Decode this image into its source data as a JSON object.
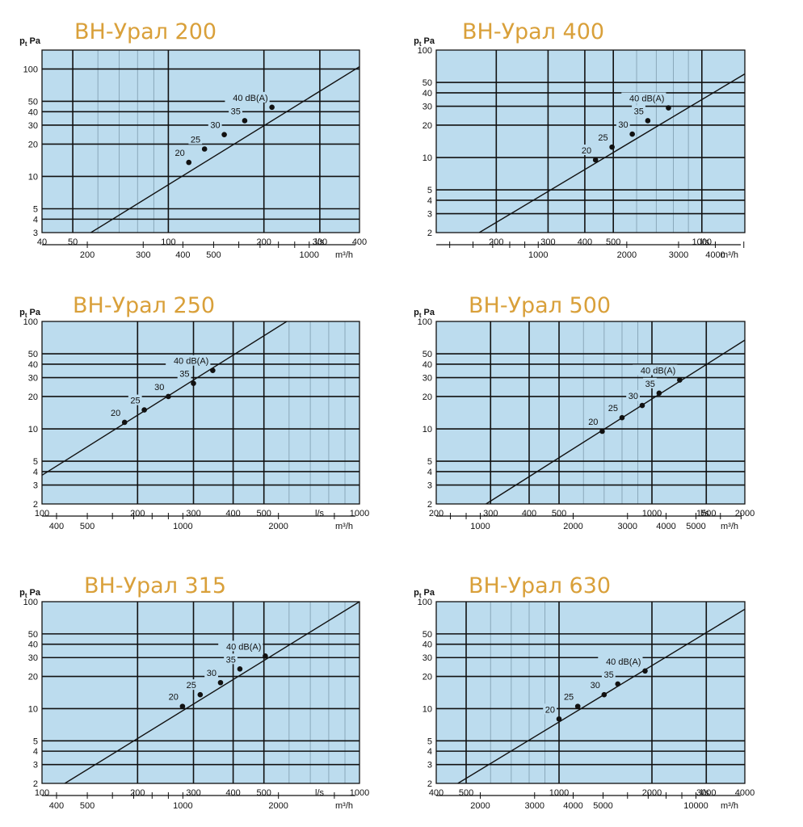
{
  "colors": {
    "plot_bg": "#bcdcee",
    "title": "#d9a03a",
    "axis": "#111111"
  },
  "labels": {
    "y_axis": "pt Pa",
    "x_flow_ls": "l/s",
    "x_flow_m3h": "m³/h"
  },
  "chart_data": [
    {
      "type": "line",
      "title": "ВН-Урал 200",
      "x_scale": "log",
      "y_scale": "log",
      "xlim": [
        40,
        400
      ],
      "ylim": [
        3,
        150
      ],
      "x_ticks": [
        40,
        50,
        100,
        200,
        300,
        400
      ],
      "y_ticks": [
        3,
        4,
        5,
        10,
        20,
        30,
        40,
        50,
        100
      ],
      "m3h_ticks": [
        200,
        300,
        400,
        500,
        1000
      ],
      "line": [
        [
          57,
          3
        ],
        [
          400,
          105
        ]
      ],
      "points": [
        {
          "label": "20",
          "x": 116,
          "y": 13.5
        },
        {
          "label": "25",
          "x": 130,
          "y": 18
        },
        {
          "label": "30",
          "x": 150,
          "y": 24.5
        },
        {
          "label": "35",
          "x": 174,
          "y": 33
        },
        {
          "label": "40 dB(A)",
          "x": 212,
          "y": 44
        }
      ]
    },
    {
      "type": "line",
      "title": "ВН-Урал 400",
      "x_scale": "log",
      "y_scale": "log",
      "xlim": [
        125,
        1400
      ],
      "ylim": [
        2,
        100
      ],
      "x_ticks": [
        200,
        300,
        400,
        500,
        1000
      ],
      "y_ticks": [
        2,
        3,
        4,
        5,
        10,
        20,
        30,
        40,
        50,
        100
      ],
      "m3h_ticks": [
        1000,
        2000,
        3000,
        4000
      ],
      "line": [
        [
          175,
          2
        ],
        [
          1400,
          60
        ]
      ],
      "points": [
        {
          "label": "20",
          "x": 435,
          "y": 9.5
        },
        {
          "label": "25",
          "x": 495,
          "y": 12.5
        },
        {
          "label": "30",
          "x": 580,
          "y": 16.5
        },
        {
          "label": "35",
          "x": 655,
          "y": 22
        },
        {
          "label": "40 dB(A)",
          "x": 770,
          "y": 29
        }
      ]
    },
    {
      "type": "line",
      "title": "ВН-Урал 250",
      "x_scale": "log",
      "y_scale": "log",
      "xlim": [
        100,
        1000
      ],
      "ylim": [
        2,
        100
      ],
      "x_ticks": [
        100,
        200,
        300,
        400,
        500,
        1000
      ],
      "y_ticks": [
        2,
        3,
        4,
        5,
        10,
        20,
        30,
        40,
        50,
        100
      ],
      "m3h_ticks": [
        400,
        500,
        1000,
        2000
      ],
      "line": [
        [
          100,
          3.7
        ],
        [
          590,
          100
        ]
      ],
      "points": [
        {
          "label": "20",
          "x": 182,
          "y": 11.5
        },
        {
          "label": "25",
          "x": 210,
          "y": 15
        },
        {
          "label": "30",
          "x": 250,
          "y": 20
        },
        {
          "label": "35",
          "x": 300,
          "y": 26.5
        },
        {
          "label": "40 dB(A)",
          "x": 345,
          "y": 35
        }
      ]
    },
    {
      "type": "line",
      "title": "ВН-Урал 500",
      "x_scale": "log",
      "y_scale": "log",
      "xlim": [
        200,
        2000
      ],
      "ylim": [
        2,
        100
      ],
      "x_ticks": [
        200,
        300,
        400,
        500,
        1000,
        1500,
        2000
      ],
      "y_ticks": [
        2,
        3,
        4,
        5,
        10,
        20,
        30,
        40,
        50,
        100
      ],
      "m3h_ticks": [
        1000,
        2000,
        3000,
        4000,
        5000
      ],
      "line": [
        [
          290,
          2
        ],
        [
          2000,
          67
        ]
      ],
      "points": [
        {
          "label": "20",
          "x": 690,
          "y": 9.5
        },
        {
          "label": "25",
          "x": 800,
          "y": 12.7
        },
        {
          "label": "30",
          "x": 930,
          "y": 16.5
        },
        {
          "label": "35",
          "x": 1055,
          "y": 21.5
        },
        {
          "label": "40 dB(A)",
          "x": 1230,
          "y": 28.5
        }
      ]
    },
    {
      "type": "line",
      "title": "ВН-Урал 315",
      "x_scale": "log",
      "y_scale": "log",
      "xlim": [
        100,
        1000
      ],
      "ylim": [
        2,
        100
      ],
      "x_ticks": [
        100,
        200,
        300,
        400,
        500,
        1000
      ],
      "y_ticks": [
        2,
        3,
        4,
        5,
        10,
        20,
        30,
        40,
        50,
        100
      ],
      "m3h_ticks": [
        400,
        500,
        1000,
        2000
      ],
      "line": [
        [
          118,
          2
        ],
        [
          1000,
          100
        ]
      ],
      "points": [
        {
          "label": "20",
          "x": 277,
          "y": 10.5
        },
        {
          "label": "25",
          "x": 315,
          "y": 13.5
        },
        {
          "label": "30",
          "x": 365,
          "y": 17.5
        },
        {
          "label": "35",
          "x": 420,
          "y": 23.5
        },
        {
          "label": "40 dB(A)",
          "x": 505,
          "y": 31
        }
      ]
    },
    {
      "type": "line",
      "title": "ВН-Урал 630",
      "x_scale": "log",
      "y_scale": "log",
      "xlim": [
        400,
        4000
      ],
      "ylim": [
        2,
        100
      ],
      "x_ticks": [
        400,
        500,
        1000,
        2000,
        3000,
        4000
      ],
      "y_ticks": [
        2,
        3,
        4,
        5,
        10,
        20,
        30,
        40,
        50,
        100
      ],
      "m3h_ticks": [
        2000,
        3000,
        4000,
        5000,
        10000
      ],
      "line": [
        [
          470,
          2
        ],
        [
          4000,
          85
        ]
      ],
      "points": [
        {
          "label": "20",
          "x": 1000,
          "y": 8
        },
        {
          "label": "25",
          "x": 1150,
          "y": 10.5
        },
        {
          "label": "30",
          "x": 1400,
          "y": 13.5
        },
        {
          "label": "35",
          "x": 1550,
          "y": 17
        },
        {
          "label": "40 dB(A)",
          "x": 1900,
          "y": 22.5
        }
      ]
    }
  ]
}
